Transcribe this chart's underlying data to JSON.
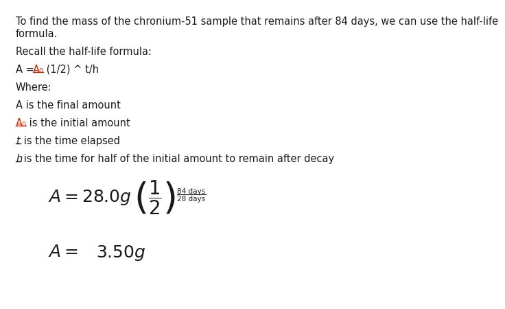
{
  "bg_color": "#ffffff",
  "text_color": "#1a1a1a",
  "red_color": "#cc2200",
  "line1": "To find the mass of the chronium-51 sample that remains after 84 days, we can use the half-life",
  "line2": "formula.",
  "line3": "Recall the half-life formula:",
  "line4_pre": "A = ",
  "line4_red": "A₀",
  "line4_post": " (1/2) ^ t/h",
  "line5": "Where:",
  "line6": "A is the final amount",
  "line7_red": "A₀",
  "line7_post": " is the initial amount",
  "line8_ul": "t",
  "line8_post": " is the time elapsed",
  "line9_ul": "h",
  "line9_post": " is the time for half of the initial amount to remain after decay",
  "exp_num": "84 days",
  "exp_den": "28 days",
  "font_body": 10.5,
  "font_formula": 18,
  "font_exp": 7.5,
  "font_answer": 18
}
